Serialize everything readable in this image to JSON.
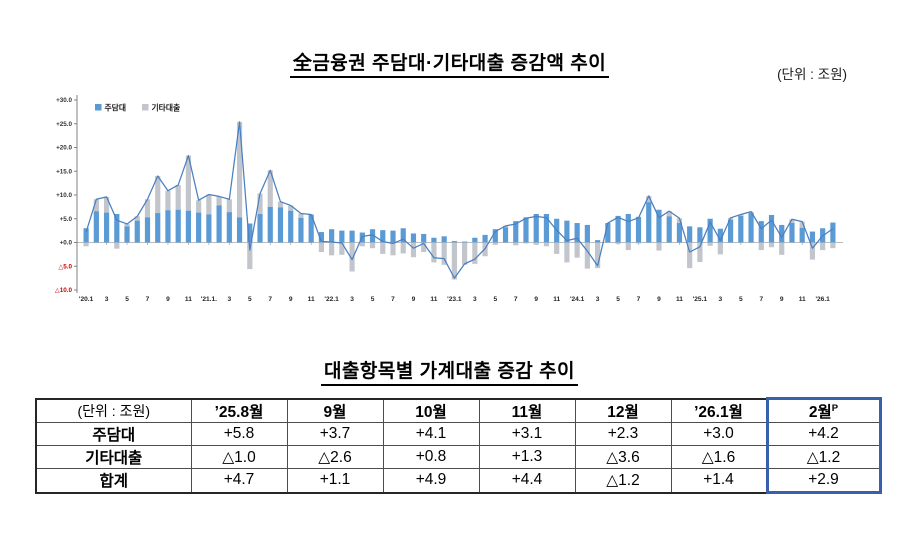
{
  "header": {
    "unit_note": "(단위 : 조원)"
  },
  "chart_data": {
    "type": "bar",
    "subtype": "stacked-bars-with-total-line",
    "title": "全금융권 주담대·기타대출 증감액 추이",
    "unit": "조원",
    "legend_position": "top-left-inside",
    "grid": "off",
    "ylim": [
      -10,
      30
    ],
    "ytick_step": 5,
    "ytick_labels": [
      "+30.0",
      "+25.0",
      "+20.0",
      "+15.0",
      "+10.0",
      "+5.0",
      "+0.0",
      "△5.0",
      "△10.0"
    ],
    "negative_tick_color": "#CC0000",
    "xtick_every": 2,
    "xtick_labels": [
      "'20.1",
      "3",
      "5",
      "7",
      "9",
      "11",
      "'21.1.",
      "3",
      "5",
      "7",
      "9",
      "11",
      "'22.1",
      "3",
      "5",
      "7",
      "9",
      "11",
      "'23.1",
      "3",
      "5",
      "7",
      "9",
      "11",
      "'24.1",
      "3",
      "5",
      "7",
      "9",
      "11",
      "'25.1",
      "3",
      "5",
      "7",
      "9",
      "11",
      "'26.1"
    ],
    "series": [
      {
        "name": "주담대",
        "color": "#5B9BD5",
        "values": [
          3.0,
          6.6,
          6.3,
          6.0,
          3.4,
          4.6,
          5.3,
          6.2,
          6.8,
          6.9,
          6.7,
          6.3,
          5.9,
          7.8,
          6.4,
          5.3,
          4.0,
          6.0,
          7.5,
          7.4,
          6.7,
          5.2,
          5.9,
          2.2,
          2.8,
          2.5,
          2.5,
          2.1,
          2.8,
          2.6,
          2.5,
          3.0,
          1.9,
          1.8,
          1.0,
          1.3,
          0.3,
          0.2,
          1.0,
          1.6,
          2.8,
          3.2,
          4.5,
          5.3,
          6.0,
          6.0,
          5.0,
          4.6,
          4.1,
          3.7,
          0.5,
          4.1,
          5.6,
          6.0,
          5.4,
          8.5,
          6.9,
          5.5,
          4.1,
          3.4,
          3.2,
          5.0,
          2.9,
          4.8,
          5.6,
          6.2,
          4.5,
          5.8,
          3.7,
          4.1,
          3.1,
          2.3,
          3.0,
          4.2
        ]
      },
      {
        "name": "기타대출",
        "color": "#C2C6CC",
        "values": [
          -0.8,
          2.5,
          3.3,
          -1.3,
          0.5,
          0.9,
          3.8,
          7.8,
          4.1,
          5.2,
          11.6,
          2.6,
          4.2,
          1.9,
          2.7,
          20.1,
          -5.6,
          4.3,
          7.7,
          1.2,
          1.1,
          0.9,
          0.0,
          -2.0,
          -2.7,
          -2.6,
          -6.1,
          -0.8,
          -1.2,
          -2.4,
          -2.7,
          -2.3,
          -3.1,
          -2.0,
          -4.2,
          -4.7,
          -7.8,
          -4.7,
          -4.5,
          -2.9,
          -0.5,
          0.3,
          -0.6,
          -0.2,
          -0.5,
          -0.8,
          -2.4,
          -4.2,
          -3.2,
          -5.5,
          -5.4,
          0.0,
          -0.3,
          -1.6,
          -0.2,
          1.3,
          -1.7,
          1.1,
          1.0,
          -5.4,
          -4.1,
          -0.7,
          -2.5,
          0.4,
          0.3,
          0.3,
          -1.6,
          -1.0,
          -2.6,
          0.8,
          1.3,
          -3.6,
          -1.6,
          -1.2
        ]
      }
    ],
    "total_line": {
      "name": "합계",
      "color": "#4A7FC1",
      "values": [
        2.2,
        9.1,
        9.6,
        4.7,
        3.9,
        5.5,
        9.1,
        14.0,
        10.9,
        12.1,
        18.3,
        8.9,
        10.1,
        9.7,
        9.1,
        25.4,
        -1.6,
        10.3,
        15.2,
        8.6,
        7.8,
        6.1,
        5.9,
        0.2,
        0.1,
        -0.1,
        -3.6,
        1.3,
        1.6,
        0.2,
        -0.2,
        0.7,
        -1.2,
        -0.2,
        -3.2,
        -3.4,
        -7.5,
        -4.5,
        -3.5,
        -1.3,
        2.3,
        3.5,
        3.9,
        5.1,
        5.5,
        5.2,
        2.6,
        0.4,
        0.9,
        -1.8,
        -4.9,
        4.1,
        5.3,
        4.4,
        5.2,
        9.8,
        5.2,
        6.6,
        5.1,
        -2.0,
        -0.9,
        4.3,
        0.4,
        5.2,
        5.9,
        6.5,
        2.9,
        4.7,
        1.1,
        4.9,
        4.4,
        -1.2,
        1.4,
        2.9
      ]
    }
  },
  "table": {
    "title": "대출항목별 가계대출 증감 추이",
    "unit_header": "(단위 : 조원)",
    "columns": [
      "’25.8월",
      "9월",
      "10월",
      "11월",
      "12월",
      "’26.1월",
      "2월"
    ],
    "projection_superscript": "P",
    "highlight_column": "2월",
    "highlight_border_color": "#3A5FAB",
    "rows": [
      {
        "label": "주담대",
        "values": [
          "+5.8",
          "+3.7",
          "+4.1",
          "+3.1",
          "+2.3",
          "+3.0",
          "+4.2"
        ]
      },
      {
        "label": "기타대출",
        "values": [
          "△1.0",
          "△2.6",
          "+0.8",
          "+1.3",
          "△3.6",
          "△1.6",
          "△1.2"
        ]
      },
      {
        "label": "합계",
        "values": [
          "+4.7",
          "+1.1",
          "+4.9",
          "+4.4",
          "△1.2",
          "+1.4",
          "+2.9"
        ]
      }
    ]
  }
}
